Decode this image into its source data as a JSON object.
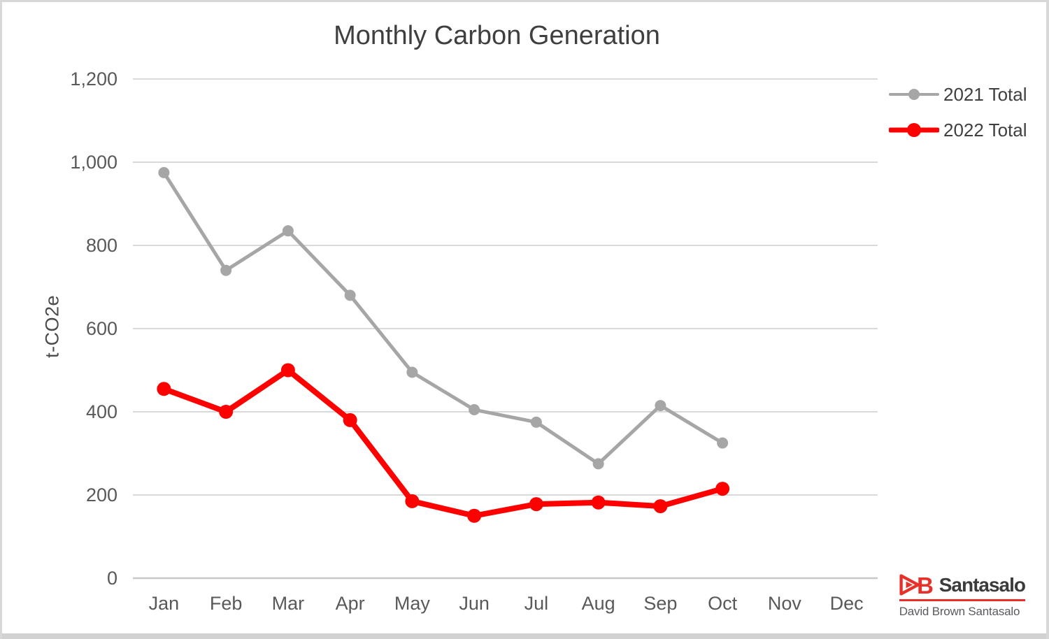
{
  "chart_data": {
    "type": "line",
    "title": "Monthly Carbon Generation",
    "xlabel": "",
    "ylabel": "t-CO2e",
    "categories": [
      "Jan",
      "Feb",
      "Mar",
      "Apr",
      "May",
      "Jun",
      "Jul",
      "Aug",
      "Sep",
      "Oct",
      "Nov",
      "Dec"
    ],
    "series": [
      {
        "name": "2021 Total",
        "color": "#a6a6a6",
        "line_width": 5,
        "marker_radius": 8,
        "values": [
          975,
          740,
          835,
          680,
          495,
          405,
          375,
          275,
          415,
          325,
          null,
          null
        ]
      },
      {
        "name": "2022 Total",
        "color": "#ff0000",
        "line_width": 8,
        "marker_radius": 10,
        "values": [
          455,
          400,
          500,
          380,
          185,
          150,
          178,
          182,
          173,
          215,
          null,
          null
        ]
      }
    ],
    "ylim": [
      0,
      1200
    ],
    "y_tick_step": 200,
    "y_tick_labels": [
      "0",
      "200",
      "400",
      "600",
      "800",
      "1,000",
      "1,200"
    ],
    "grid": "horizontal gridlines on",
    "legend_position": "right"
  },
  "colors": {
    "gridline": "#d9d9d9",
    "axis_line": "#c9c9c9",
    "tick_text": "#595959",
    "title_text": "#3f3f3f",
    "axis_title_text": "#4c4c4c",
    "legend_text": "#404040",
    "brand_red": "#e8302a",
    "brand_name_text": "#3b3b3b",
    "brand_subtitle_text": "#5a5b5e"
  },
  "branding": {
    "name": "Santasalo",
    "subtitle": "David Brown Santasalo"
  }
}
